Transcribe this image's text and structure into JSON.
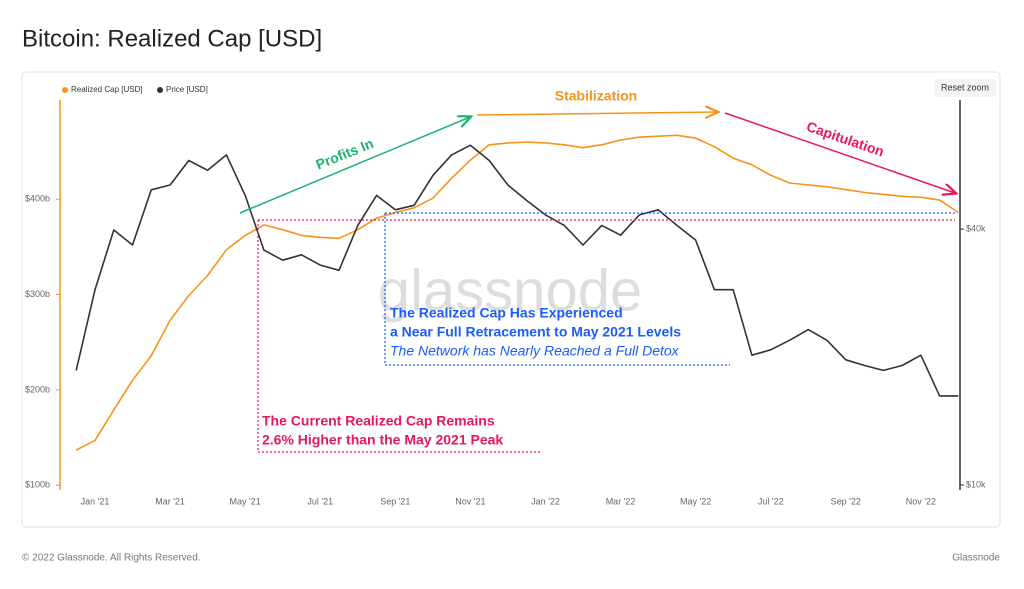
{
  "title": "Bitcoin: Realized Cap [USD]",
  "reset_zoom": "Reset zoom",
  "watermark": "glassnode",
  "footer": {
    "left": "© 2022 Glassnode. All Rights Reserved.",
    "right": "Glassnode"
  },
  "chart_data": {
    "type": "line",
    "categories": [
      null,
      "Jan '21",
      null,
      null,
      null,
      "Mar '21",
      null,
      null,
      null,
      "May '21",
      null,
      null,
      null,
      "Jul '21",
      null,
      null,
      null,
      "Sep '21",
      null,
      null,
      null,
      "Nov '21",
      null,
      null,
      null,
      "Jan '22",
      null,
      null,
      null,
      "Mar '22",
      null,
      null,
      null,
      "May '22",
      null,
      null,
      null,
      "Jul '22",
      null,
      null,
      null,
      "Sep '22",
      null,
      null,
      null,
      "Nov '22",
      null,
      null
    ],
    "series": [
      {
        "name": "Realized Cap [USD]",
        "color": "#f7931a",
        "axis": "y",
        "values": [
          137,
          147,
          179,
          210,
          236,
          273,
          299,
          320,
          347,
          362,
          373,
          368,
          362,
          360,
          359,
          368,
          380,
          386,
          391,
          401,
          422,
          441,
          457,
          459,
          460,
          459,
          457,
          454,
          457,
          462,
          465,
          466,
          467,
          464,
          455,
          443,
          436,
          425,
          417,
          415,
          413,
          410,
          407,
          405,
          403,
          402,
          399,
          386
        ]
      },
      {
        "name": "Price [USD]",
        "color": "#333333",
        "axis": "y2",
        "values": [
          18600,
          28800,
          39800,
          36700,
          49500,
          50800,
          58000,
          55000,
          59800,
          48000,
          35700,
          33800,
          34800,
          32900,
          32000,
          40800,
          48000,
          44400,
          45500,
          53500,
          59800,
          63000,
          58000,
          50800,
          46700,
          43200,
          40800,
          36700,
          40800,
          38700,
          43200,
          44400,
          40800,
          37700,
          28800,
          28800,
          20200,
          20800,
          21900,
          23200,
          21900,
          19700,
          19100,
          18600,
          19100,
          20200,
          16200,
          16200
        ]
      }
    ],
    "ylim": [
      95,
      504
    ],
    "yticks": [
      {
        "value": 100,
        "label": "$100b"
      },
      {
        "value": 200,
        "label": "$200b"
      },
      {
        "value": 300,
        "label": "$300b"
      },
      {
        "value": 400,
        "label": "$400b"
      }
    ],
    "y2lim": [
      9730,
      80500
    ],
    "y2ticks": [
      {
        "value": 10000,
        "label": "$10k"
      },
      {
        "value": 40000,
        "label": "$40k"
      }
    ],
    "y2_log": true,
    "annotations": [
      "Profits In",
      "Stabilization",
      "Capitulation",
      "The Realized Cap Has Experienced",
      "a Near Full Retracement to May 2021 Levels",
      "The Network has Nearly Reached a Full Detox",
      "The Current Realized Cap Remains",
      "2.6% Higher than the May 2021 Peak"
    ]
  }
}
